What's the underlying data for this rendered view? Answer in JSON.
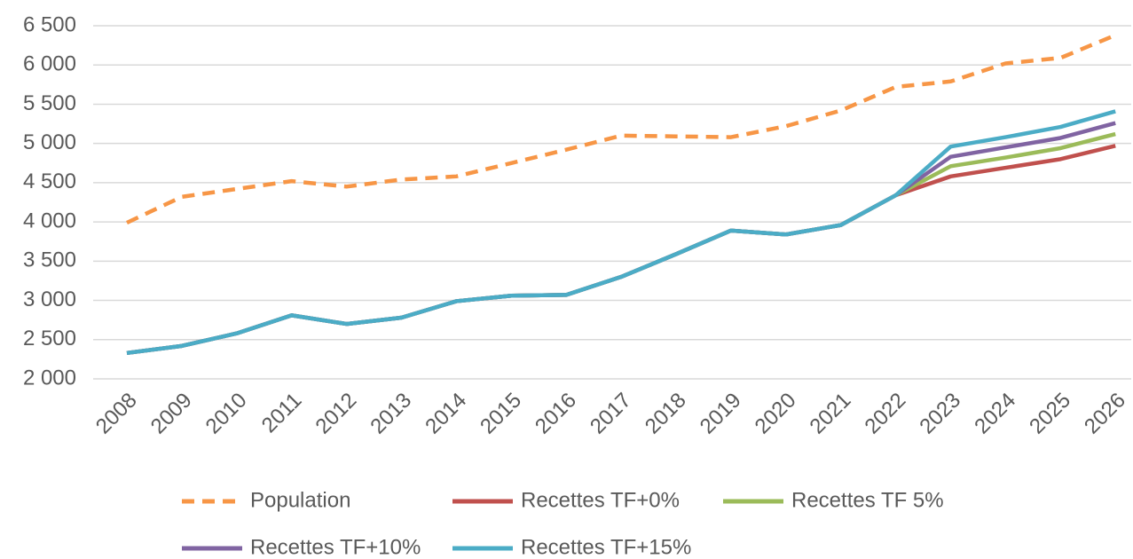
{
  "chart_data": {
    "type": "line",
    "categories": [
      "2008",
      "2009",
      "2010",
      "2011",
      "2012",
      "2013",
      "2014",
      "2015",
      "2016",
      "2017",
      "2018",
      "2019",
      "2020",
      "2021",
      "2022",
      "2023",
      "2024",
      "2025",
      "2026"
    ],
    "series": [
      {
        "name": "Population",
        "color": "#f79646",
        "dashed": true,
        "values": [
          3990,
          4320,
          4420,
          4520,
          4450,
          4540,
          4580,
          4750,
          4920,
          5100,
          5090,
          5080,
          5220,
          5420,
          5720,
          5790,
          6020,
          6090,
          6380
        ]
      },
      {
        "name": "Recettes TF+0%",
        "color": "#c0504d",
        "values": [
          2330,
          2420,
          2580,
          2810,
          2700,
          2780,
          2990,
          3060,
          3070,
          3300,
          3590,
          3890,
          3840,
          3960,
          4340,
          4580,
          4690,
          4800,
          4970
        ]
      },
      {
        "name": "Recettes TF 5%",
        "color": "#9bbb59",
        "values": [
          2330,
          2420,
          2580,
          2810,
          2700,
          2780,
          2990,
          3060,
          3070,
          3300,
          3590,
          3890,
          3840,
          3960,
          4340,
          4710,
          4820,
          4940,
          5120
        ]
      },
      {
        "name": "Recettes TF+10%",
        "color": "#8064a2",
        "values": [
          2330,
          2420,
          2580,
          2810,
          2700,
          2780,
          2990,
          3060,
          3070,
          3300,
          3590,
          3890,
          3840,
          3960,
          4340,
          4830,
          4950,
          5070,
          5260
        ]
      },
      {
        "name": "Recettes TF+15%",
        "color": "#4bacc6",
        "values": [
          2330,
          2420,
          2580,
          2810,
          2700,
          2780,
          2990,
          3060,
          3070,
          3300,
          3590,
          3890,
          3840,
          3960,
          4340,
          4960,
          5080,
          5210,
          5410
        ]
      }
    ],
    "ylim": [
      2000,
      6500
    ],
    "yticks": [
      {
        "value": 2000,
        "label": "2 000"
      },
      {
        "value": 2500,
        "label": "2 500"
      },
      {
        "value": 3000,
        "label": "3 000"
      },
      {
        "value": 3500,
        "label": "3 500"
      },
      {
        "value": 4000,
        "label": "4 000"
      },
      {
        "value": 4500,
        "label": "4 500"
      },
      {
        "value": 5000,
        "label": "5 000"
      },
      {
        "value": 5500,
        "label": "5 500"
      },
      {
        "value": 6000,
        "label": "6 000"
      },
      {
        "value": 6500,
        "label": "6 500"
      }
    ],
    "grid": true,
    "legend": "bottom"
  }
}
